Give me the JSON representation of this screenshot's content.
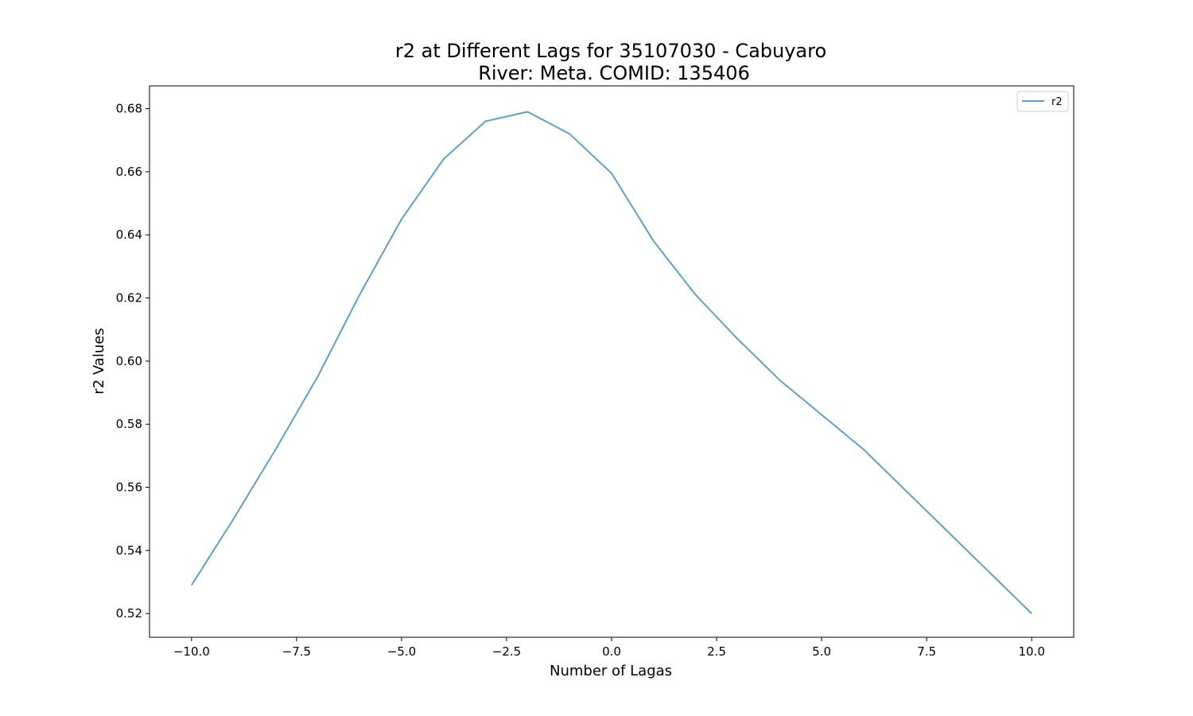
{
  "chart_data": {
    "type": "line",
    "title": "r2 at Different Lags for 35107030 - Cabuyaro",
    "subtitle": "River: Meta. COMID: 135406",
    "xlabel": "Number of Lagas",
    "ylabel": "r2 Values",
    "xlim": [
      -11,
      11
    ],
    "ylim": [
      0.5125,
      0.6872
    ],
    "xticks": [
      -10.0,
      -7.5,
      -5.0,
      -2.5,
      0.0,
      2.5,
      5.0,
      7.5,
      10.0
    ],
    "xtick_labels": [
      "−10.0",
      "−7.5",
      "−5.0",
      "−2.5",
      "0.0",
      "2.5",
      "5.0",
      "7.5",
      "10.0"
    ],
    "yticks": [
      0.52,
      0.54,
      0.56,
      0.58,
      0.6,
      0.62,
      0.64,
      0.66,
      0.68
    ],
    "ytick_labels": [
      "0.52",
      "0.54",
      "0.56",
      "0.58",
      "0.60",
      "0.62",
      "0.64",
      "0.66",
      "0.68"
    ],
    "grid": false,
    "legend_position": "top-right",
    "series": [
      {
        "name": "r2",
        "color": "#5f9fcb",
        "x": [
          -10,
          -9,
          -8,
          -7,
          -6,
          -5,
          -4,
          -3,
          -2,
          -1,
          0,
          1,
          2,
          3,
          4,
          5,
          6,
          7,
          8,
          9,
          10
        ],
        "y": [
          0.529,
          0.55,
          0.572,
          0.595,
          0.621,
          0.645,
          0.664,
          0.676,
          0.679,
          0.672,
          0.6595,
          0.638,
          0.621,
          0.607,
          0.594,
          0.583,
          0.572,
          0.559,
          0.546,
          0.533,
          0.52
        ]
      }
    ]
  }
}
